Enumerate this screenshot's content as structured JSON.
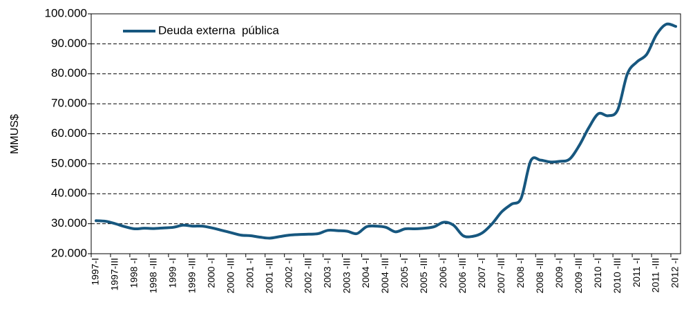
{
  "chart_data": {
    "type": "line",
    "y_label": "MMUS$",
    "categories": [
      "1997-I",
      null,
      "1997-III",
      null,
      "1998 -I",
      null,
      "1998 -III",
      null,
      "1999 -I",
      null,
      "1999 -III",
      null,
      "2000 -I",
      null,
      "2000 -III",
      null,
      "2001 -I",
      null,
      "2001 -III",
      null,
      "2002 -I",
      null,
      "2002 -III",
      null,
      "2003 -I",
      null,
      "2003 -III",
      null,
      "2004 -I",
      null,
      "2004 -III",
      null,
      "2005 -I",
      null,
      "2005 -III",
      null,
      "2006 -I",
      null,
      "2006 -III",
      null,
      "2007 -I",
      null,
      "2007 -III",
      null,
      "2008 -I",
      null,
      "2008 -III",
      null,
      "2009 -I",
      null,
      "2009 -III",
      null,
      "2010 -I",
      null,
      "2010 -III",
      null,
      "2011 -I",
      null,
      "2011 -III",
      null,
      "2012 -I"
    ],
    "series": [
      {
        "name": "Deuda externa  pública",
        "color": "#17577f",
        "values": [
          31000,
          30800,
          30000,
          29000,
          28300,
          28500,
          28400,
          28600,
          28800,
          29500,
          29200,
          29200,
          28600,
          27800,
          27000,
          26200,
          26000,
          25500,
          25200,
          25700,
          26200,
          26400,
          26500,
          26700,
          27800,
          27700,
          27500,
          26700,
          29000,
          29200,
          28800,
          27300,
          28300,
          28300,
          28500,
          29000,
          30500,
          29500,
          26000,
          25800,
          27000,
          30000,
          34000,
          36500,
          38500,
          51000,
          51200,
          50600,
          50800,
          51500,
          56000,
          62000,
          66700,
          66000,
          68000,
          80000,
          84000,
          86500,
          93000,
          96500,
          95800
        ]
      }
    ],
    "ylim": [
      20000,
      100000
    ],
    "yticks": [
      {
        "value": 20000,
        "label": "20.000"
      },
      {
        "value": 30000,
        "label": "30.000"
      },
      {
        "value": 40000,
        "label": "40.000"
      },
      {
        "value": 50000,
        "label": "50.000"
      },
      {
        "value": 60000,
        "label": "60.000"
      },
      {
        "value": 70000,
        "label": "70.000"
      },
      {
        "value": 80000,
        "label": "80.000"
      },
      {
        "value": 90000,
        "label": "90.000"
      },
      {
        "value": 100000,
        "label": "100.000"
      }
    ],
    "grid": true,
    "legend": "upper left"
  }
}
